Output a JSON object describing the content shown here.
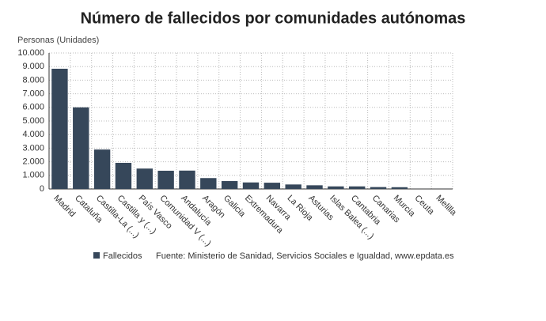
{
  "chart_data": {
    "type": "bar",
    "title": "Número de fallecidos por comunidades autónomas",
    "y_label": "Personas (Unidades)",
    "categories": [
      "Madrid",
      "Cataluña",
      "Castilla-La (...)",
      "Castilla y (...)",
      "País Vasco",
      "Comunidad V (...)",
      "Andalucía",
      "Aragón",
      "Galicia",
      "Extremadura",
      "Navarra",
      "La Rioja",
      "Asturias",
      "Islas Balea (...)",
      "Cantabria",
      "Canarias",
      "Murcia",
      "Ceuta",
      "Melilla"
    ],
    "series": [
      {
        "name": "Fallecidos",
        "color": "#36475a",
        "values": [
          8840,
          6000,
          2900,
          1920,
          1500,
          1340,
          1350,
          800,
          580,
          480,
          460,
          330,
          270,
          190,
          190,
          140,
          130,
          3,
          2
        ]
      }
    ],
    "ylim": [
      0,
      10000
    ],
    "yticks": [
      0,
      {
        "value": 1000,
        "label": "1.000"
      },
      {
        "value": 2000,
        "label": "2.000"
      },
      {
        "value": 3000,
        "label": "3.000"
      },
      {
        "value": 4000,
        "label": "4.000"
      },
      {
        "value": 5000,
        "label": "5.000"
      },
      {
        "value": 6000,
        "label": "6.000"
      },
      {
        "value": 7000,
        "label": "7.000"
      },
      {
        "value": 8000,
        "label": "8.000"
      },
      {
        "value": 9000,
        "label": "9.000"
      },
      {
        "value": 10000,
        "label": "10.000"
      }
    ],
    "grid": true,
    "source": "Fuente: Ministerio de Sanidad, Servicios Sociales e Igualdad, www.epdata.es"
  }
}
